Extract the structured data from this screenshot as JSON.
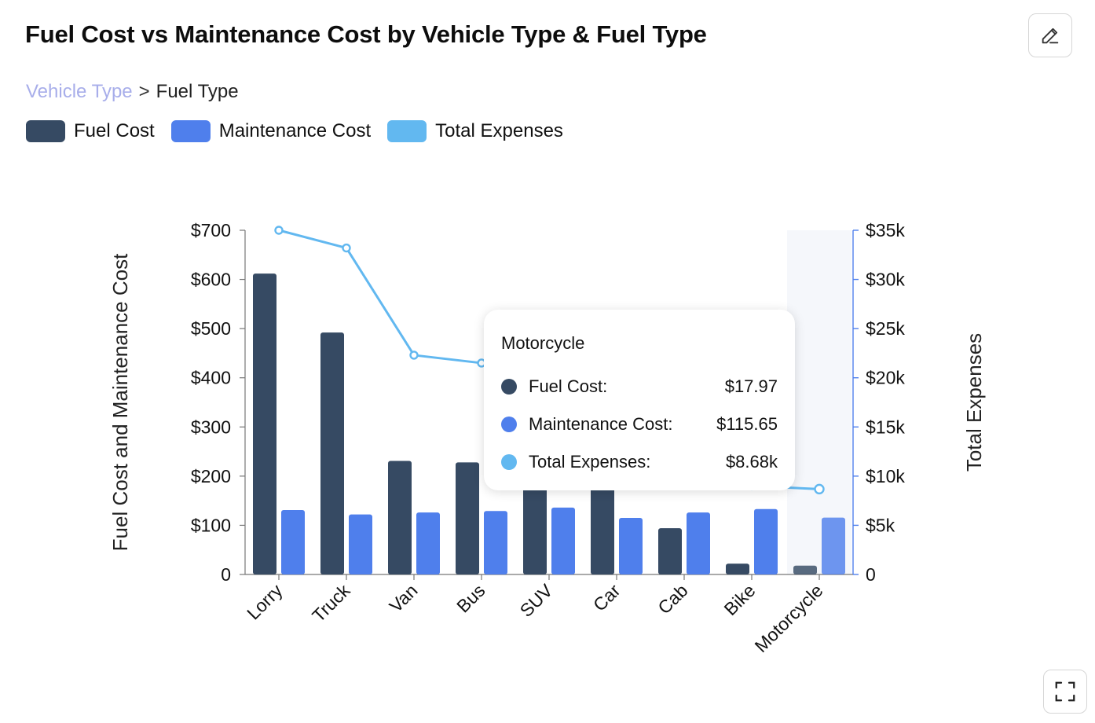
{
  "header": {
    "title": "Fuel Cost vs Maintenance Cost by Vehicle Type & Fuel Type"
  },
  "breadcrumb": {
    "current_level": "Vehicle Type",
    "separator": ">",
    "next_level": "Fuel Type"
  },
  "toolbar": {
    "edit_icon": "pencil-icon",
    "expand_icon": "expand-icon"
  },
  "colors": {
    "fuel": "#364a63",
    "maintenance": "#4f7fec",
    "total": "#62b8f0",
    "hover_band": "#f5f7fb",
    "right_axis": "#4f7fec"
  },
  "chart_data": {
    "type": "bar",
    "title": "Fuel Cost vs Maintenance Cost by Vehicle Type & Fuel Type",
    "categories": [
      "Lorry",
      "Truck",
      "Van",
      "Bus",
      "SUV",
      "Car",
      "Cab",
      "Bike",
      "Motorcycle"
    ],
    "series": [
      {
        "name": "Fuel Cost",
        "type": "bar",
        "axis": "left",
        "values": [
          612,
          492,
          231,
          228,
          180,
          178,
          94,
          22,
          17.97
        ]
      },
      {
        "name": "Maintenance Cost",
        "type": "bar",
        "axis": "left",
        "values": [
          131,
          122,
          126,
          129,
          136,
          115,
          126,
          133,
          115.65
        ]
      },
      {
        "name": "Total Expenses",
        "type": "line",
        "axis": "right",
        "values": [
          35000,
          33200,
          22300,
          21500,
          19500,
          16000,
          12500,
          9000,
          8680
        ]
      }
    ],
    "ylabel": "Fuel Cost and Maintenance Cost",
    "y2label": "Total Expenses",
    "ylim": [
      0,
      700
    ],
    "y2lim": [
      0,
      35000
    ],
    "yticks": [
      "0",
      "$100",
      "$200",
      "$300",
      "$400",
      "$500",
      "$600",
      "$700"
    ],
    "y2ticks": [
      "0",
      "$5k",
      "$10k",
      "$15k",
      "$20k",
      "$25k",
      "$30k",
      "$35k"
    ],
    "legend": "top-left",
    "grid": false,
    "highlighted_category": "Motorcycle",
    "tooltip": {
      "title": "Motorcycle",
      "rows": [
        {
          "label": "Fuel Cost:",
          "value": "$17.97"
        },
        {
          "label": "Maintenance Cost:",
          "value": "$115.65"
        },
        {
          "label": "Total Expenses:",
          "value": "$8.68k"
        }
      ]
    }
  }
}
